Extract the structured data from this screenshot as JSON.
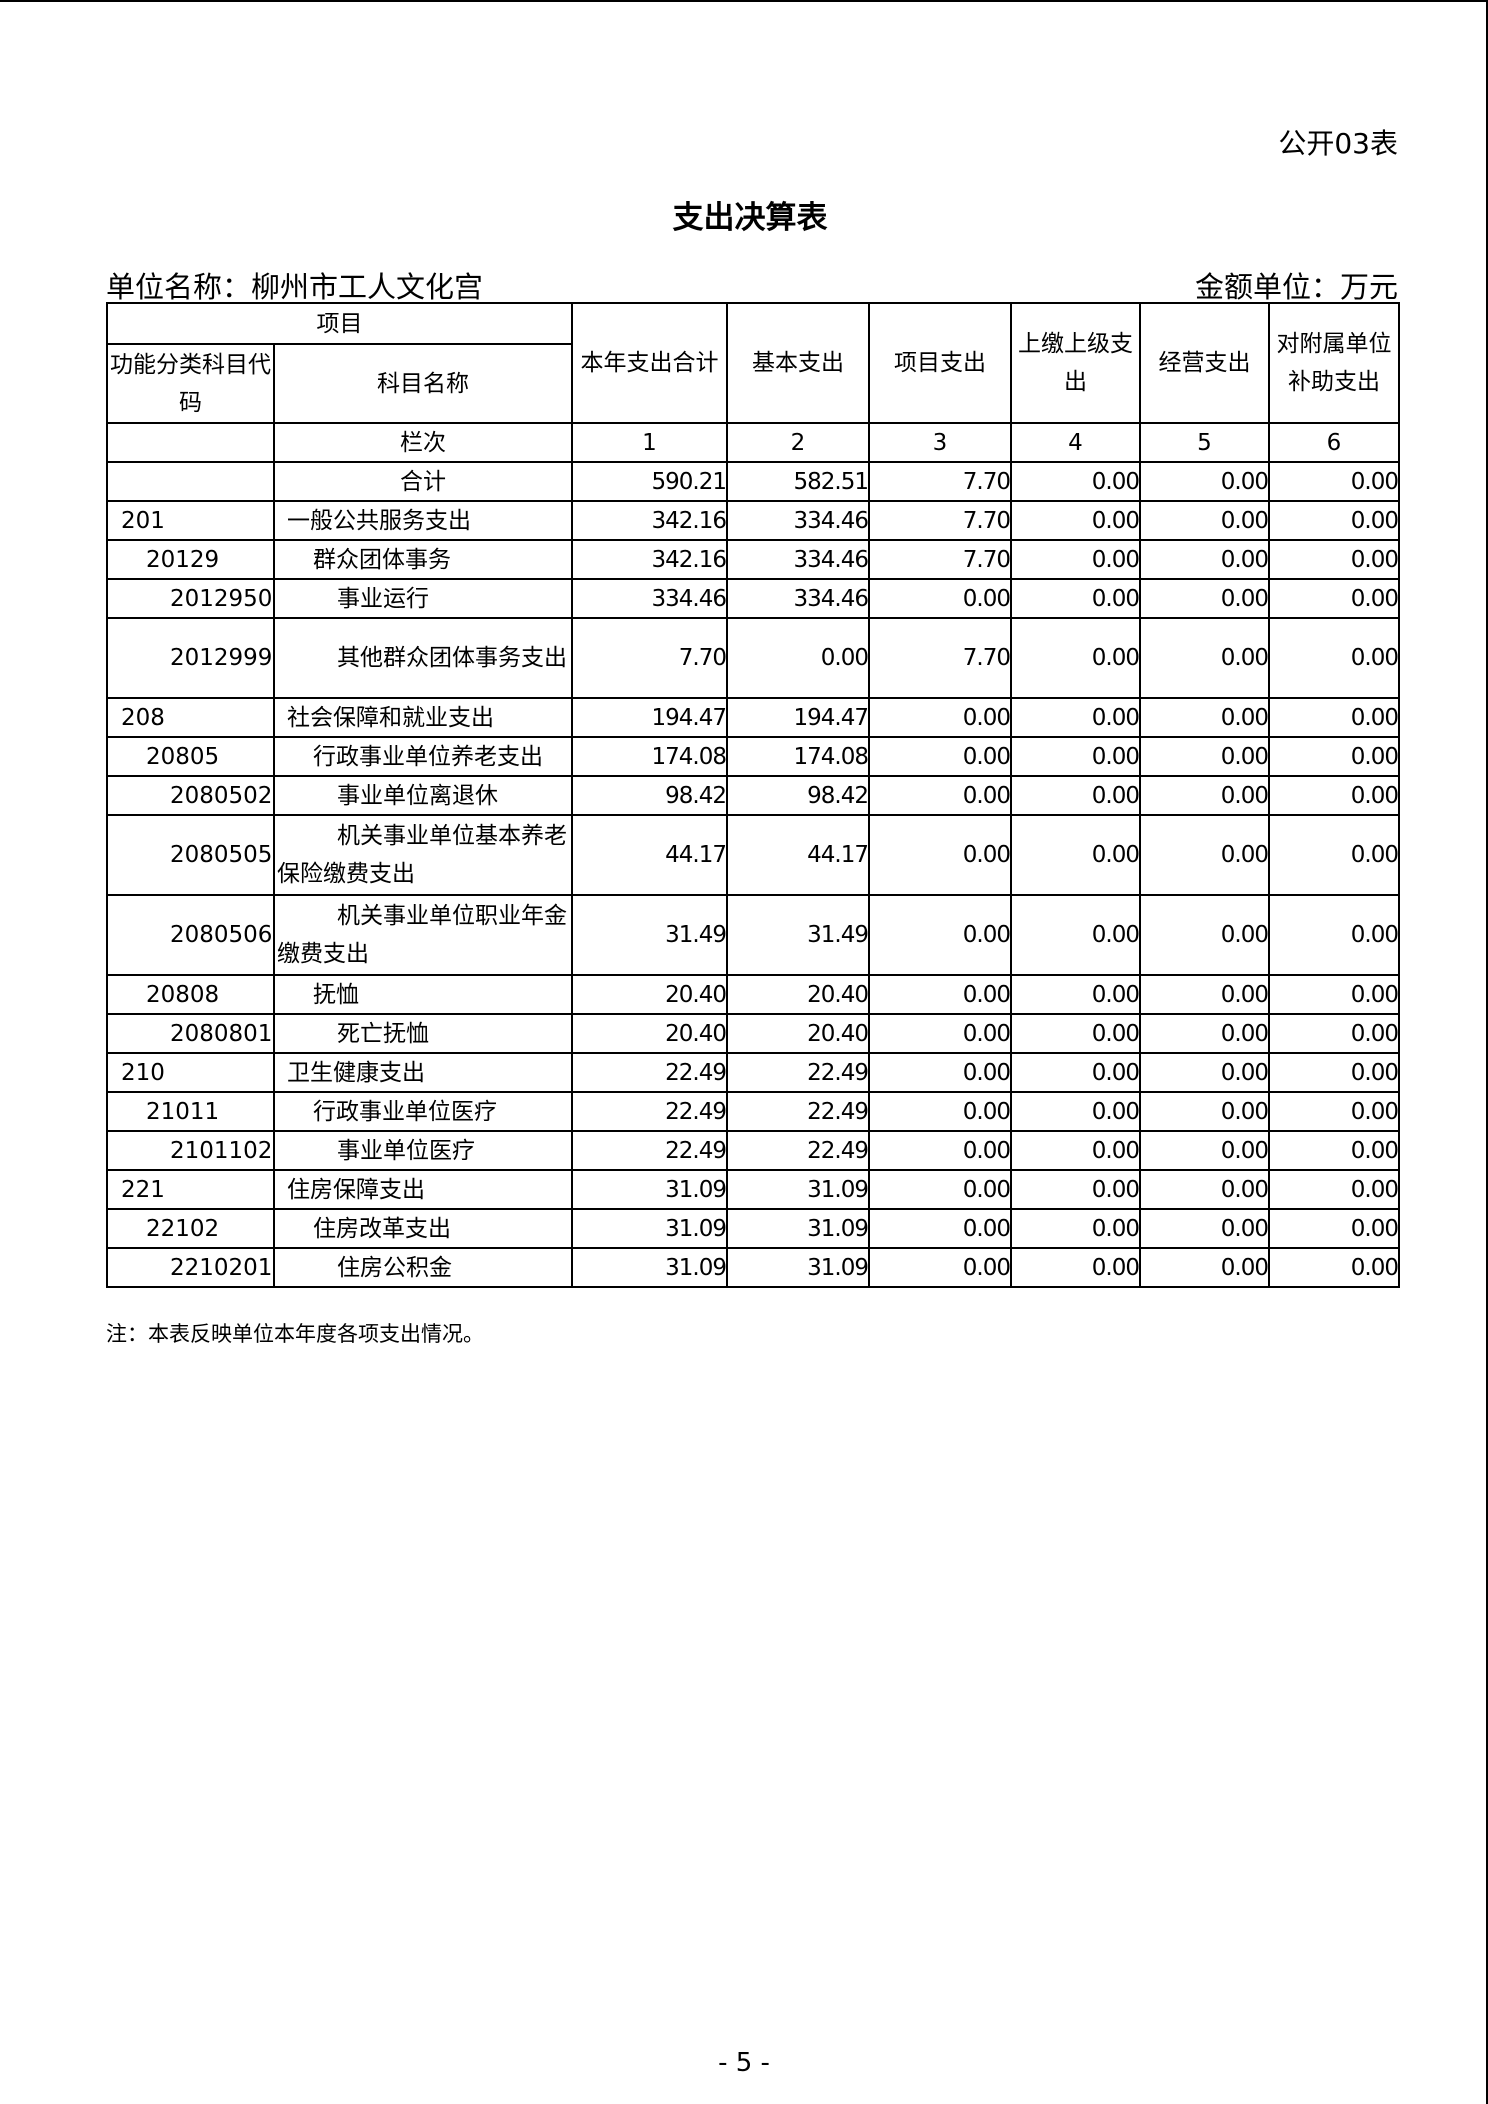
{
  "table_tag": "公开03表",
  "title": "支出决算表",
  "unit_name": "单位名称：柳州市工人文化宫",
  "amount_unit": "金额单位：万元",
  "headers": {
    "item": "项目",
    "code": "功能分类科目代码",
    "name": "科目名称",
    "cols": [
      "本年支出合计",
      "基本支出",
      "项目支出",
      "上缴上级支出",
      "经营支出",
      "对附属单位补助支出"
    ],
    "index_label": "栏次",
    "index_nums": [
      "1",
      "2",
      "3",
      "4",
      "5",
      "6"
    ]
  },
  "rows": [
    {
      "code": "",
      "name": "合计",
      "level": 0,
      "values": [
        "590.21",
        "582.51",
        "7.70",
        "0.00",
        "0.00",
        "0.00"
      ]
    },
    {
      "code": "201",
      "name": "一般公共服务支出",
      "level": 1,
      "values": [
        "342.16",
        "334.46",
        "7.70",
        "0.00",
        "0.00",
        "0.00"
      ]
    },
    {
      "code": "20129",
      "name": "群众团体事务",
      "level": 2,
      "values": [
        "342.16",
        "334.46",
        "7.70",
        "0.00",
        "0.00",
        "0.00"
      ]
    },
    {
      "code": "2012950",
      "name": "事业运行",
      "level": 3,
      "values": [
        "334.46",
        "334.46",
        "0.00",
        "0.00",
        "0.00",
        "0.00"
      ]
    },
    {
      "code": "2012999",
      "name": "其他群众团体事务支出",
      "level": 3,
      "tall": true,
      "values": [
        "7.70",
        "0.00",
        "7.70",
        "0.00",
        "0.00",
        "0.00"
      ]
    },
    {
      "code": "208",
      "name": "社会保障和就业支出",
      "level": 1,
      "values": [
        "194.47",
        "194.47",
        "0.00",
        "0.00",
        "0.00",
        "0.00"
      ]
    },
    {
      "code": "20805",
      "name": "行政事业单位养老支出",
      "level": 2,
      "values": [
        "174.08",
        "174.08",
        "0.00",
        "0.00",
        "0.00",
        "0.00"
      ]
    },
    {
      "code": "2080502",
      "name": "事业单位离退休",
      "level": 3,
      "values": [
        "98.42",
        "98.42",
        "0.00",
        "0.00",
        "0.00",
        "0.00"
      ]
    },
    {
      "code": "2080505",
      "name": "机关事业单位基本养老保险缴费支出",
      "level": 3,
      "tall": true,
      "values": [
        "44.17",
        "44.17",
        "0.00",
        "0.00",
        "0.00",
        "0.00"
      ]
    },
    {
      "code": "2080506",
      "name": "机关事业单位职业年金缴费支出",
      "level": 3,
      "tall": true,
      "values": [
        "31.49",
        "31.49",
        "0.00",
        "0.00",
        "0.00",
        "0.00"
      ]
    },
    {
      "code": "20808",
      "name": "抚恤",
      "level": 2,
      "values": [
        "20.40",
        "20.40",
        "0.00",
        "0.00",
        "0.00",
        "0.00"
      ]
    },
    {
      "code": "2080801",
      "name": "死亡抚恤",
      "level": 3,
      "values": [
        "20.40",
        "20.40",
        "0.00",
        "0.00",
        "0.00",
        "0.00"
      ]
    },
    {
      "code": "210",
      "name": "卫生健康支出",
      "level": 1,
      "values": [
        "22.49",
        "22.49",
        "0.00",
        "0.00",
        "0.00",
        "0.00"
      ]
    },
    {
      "code": "21011",
      "name": "行政事业单位医疗",
      "level": 2,
      "values": [
        "22.49",
        "22.49",
        "0.00",
        "0.00",
        "0.00",
        "0.00"
      ]
    },
    {
      "code": "2101102",
      "name": "事业单位医疗",
      "level": 3,
      "values": [
        "22.49",
        "22.49",
        "0.00",
        "0.00",
        "0.00",
        "0.00"
      ]
    },
    {
      "code": "221",
      "name": "住房保障支出",
      "level": 1,
      "values": [
        "31.09",
        "31.09",
        "0.00",
        "0.00",
        "0.00",
        "0.00"
      ]
    },
    {
      "code": "22102",
      "name": "住房改革支出",
      "level": 2,
      "values": [
        "31.09",
        "31.09",
        "0.00",
        "0.00",
        "0.00",
        "0.00"
      ]
    },
    {
      "code": "2210201",
      "name": "住房公积金",
      "level": 3,
      "values": [
        "31.09",
        "31.09",
        "0.00",
        "0.00",
        "0.00",
        "0.00"
      ]
    }
  ],
  "note": "注：本表反映单位本年度各项支出情况。",
  "page_number": "- 5 -"
}
